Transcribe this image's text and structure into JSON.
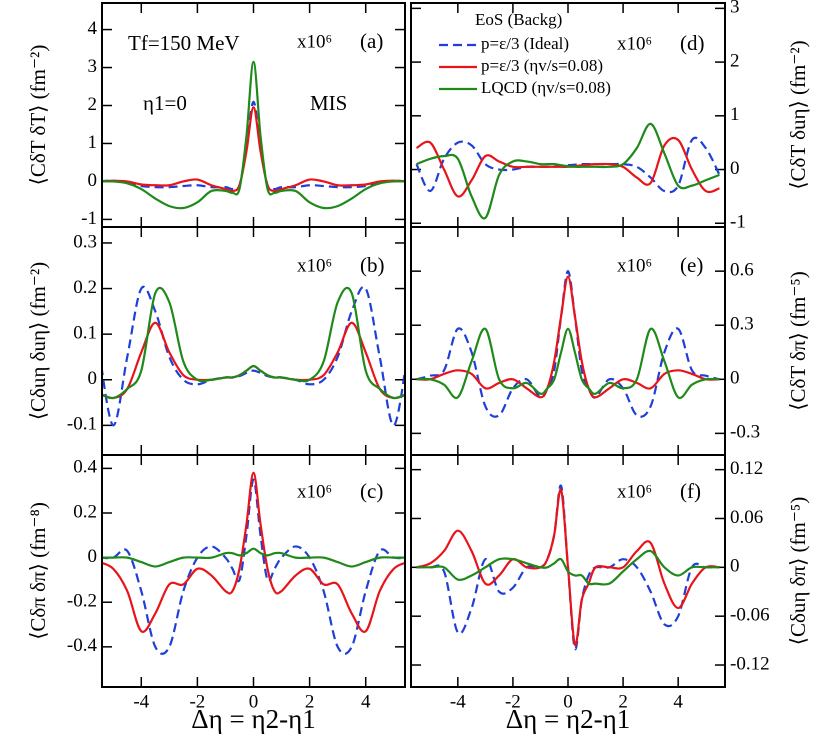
{
  "chart_data": [
    {
      "type": "line",
      "panel": "(a)",
      "multiplier": "x10⁶",
      "ylabel": "⟨CδT δT⟩ (fm⁻²)",
      "annotations": [
        "Tf=150 MeV",
        "η1=0",
        "MIS"
      ],
      "xlim": [
        -5.4,
        5.4
      ],
      "xticks": [
        -4,
        -2,
        0,
        2,
        4
      ],
      "ylim": [
        -1.2,
        4.7
      ],
      "yticks": [
        -1,
        0,
        1,
        2,
        3,
        4
      ],
      "x": [
        -5.5,
        -5,
        -4.5,
        -4,
        -3.5,
        -3,
        -2.5,
        -2,
        -1.5,
        -1,
        -0.75,
        -0.5,
        -0.25,
        0,
        0.25,
        0.5,
        0.75,
        1,
        1.5,
        2,
        2.5,
        3,
        3.5,
        4,
        4.5,
        5,
        5.5
      ],
      "series": [
        {
          "color": "#1f3fd8",
          "dash": true,
          "values": [
            0,
            0.02,
            -0.05,
            -0.12,
            -0.15,
            -0.15,
            -0.12,
            -0.1,
            -0.15,
            -0.15,
            -0.2,
            -0.1,
            0.9,
            2.1,
            0.9,
            -0.1,
            -0.2,
            -0.15,
            -0.15,
            -0.1,
            -0.12,
            -0.15,
            -0.15,
            -0.12,
            -0.05,
            0.02,
            0
          ]
        },
        {
          "color": "#e8141a",
          "dash": false,
          "values": [
            0,
            0.02,
            0,
            -0.08,
            -0.1,
            -0.1,
            0,
            0.05,
            -0.1,
            -0.2,
            -0.25,
            -0.1,
            0.8,
            1.95,
            0.8,
            -0.1,
            -0.25,
            -0.2,
            -0.1,
            0.05,
            0,
            -0.1,
            -0.1,
            -0.08,
            0,
            0.02,
            0
          ]
        },
        {
          "color": "#1f8a1a",
          "dash": false,
          "values": [
            0,
            0,
            -0.05,
            -0.2,
            -0.45,
            -0.65,
            -0.7,
            -0.55,
            -0.25,
            -0.25,
            -0.3,
            -0.2,
            1.2,
            3.15,
            1.2,
            -0.2,
            -0.3,
            -0.25,
            -0.25,
            -0.55,
            -0.7,
            -0.65,
            -0.45,
            -0.2,
            -0.05,
            0,
            0
          ]
        }
      ]
    },
    {
      "type": "line",
      "panel": "(b)",
      "multiplier": "x10⁶",
      "ylabel": "⟨Cδuη δuη⟩ (fm⁻²)",
      "xlim": [
        -5.4,
        5.4
      ],
      "xticks": [
        -4,
        -2,
        0,
        2,
        4
      ],
      "ylim": [
        -0.165,
        0.335
      ],
      "yticks": [
        -0.1,
        0,
        0.1,
        0.2,
        0.3
      ],
      "x": [
        -5.5,
        -5,
        -4.5,
        -4,
        -3.5,
        -3,
        -2.5,
        -2,
        -1.5,
        -1,
        -0.75,
        -0.5,
        -0.25,
        0,
        0.25,
        0.5,
        0.75,
        1,
        1.5,
        2,
        2.5,
        3,
        3.5,
        4,
        4.5,
        5,
        5.5
      ],
      "series": [
        {
          "color": "#1f3fd8",
          "dash": true,
          "values": [
            0.06,
            -0.1,
            0.05,
            0.2,
            0.15,
            0.05,
            0,
            -0.01,
            0,
            0.005,
            0.005,
            0.008,
            0.015,
            0.02,
            0.015,
            0.008,
            0.005,
            0.005,
            0,
            -0.01,
            0,
            0.05,
            0.15,
            0.2,
            0.05,
            -0.1,
            0.06
          ]
        },
        {
          "color": "#e8141a",
          "dash": false,
          "values": [
            -0.03,
            -0.04,
            -0.02,
            0.06,
            0.125,
            0.06,
            0.01,
            0,
            0,
            0.005,
            0.005,
            0.01,
            0.02,
            0.03,
            0.02,
            0.01,
            0.005,
            0.005,
            0,
            0,
            0.01,
            0.06,
            0.125,
            0.06,
            -0.02,
            -0.04,
            -0.03
          ]
        },
        {
          "color": "#1f8a1a",
          "dash": false,
          "values": [
            -0.03,
            -0.04,
            -0.02,
            0.02,
            0.19,
            0.17,
            0.04,
            0,
            0,
            0.005,
            0.005,
            0.01,
            0.02,
            0.03,
            0.02,
            0.01,
            0.005,
            0.005,
            0,
            0,
            0.04,
            0.17,
            0.19,
            0.02,
            -0.02,
            -0.04,
            -0.03
          ]
        }
      ]
    },
    {
      "type": "line",
      "panel": "(c)",
      "multiplier": "x10⁶",
      "ylabel": "⟨Cδπ δπ⟩ (fm⁻⁸)",
      "xlabel": "Δη = η2-η1",
      "xlim": [
        -5.4,
        5.4
      ],
      "xticks": [
        -4,
        -2,
        0,
        2,
        4
      ],
      "ylim": [
        -0.58,
        0.46
      ],
      "yticks": [
        -0.4,
        -0.2,
        0,
        0.2,
        0.4
      ],
      "x": [
        -5.5,
        -5,
        -4.5,
        -4,
        -3.5,
        -3,
        -2.5,
        -2,
        -1.5,
        -1,
        -0.75,
        -0.5,
        -0.25,
        0,
        0.25,
        0.5,
        0.75,
        1,
        1.5,
        2,
        2.5,
        3,
        3.5,
        4,
        4.5,
        5,
        5.5
      ],
      "series": [
        {
          "color": "#1f3fd8",
          "dash": true,
          "values": [
            0,
            0,
            0.03,
            -0.15,
            -0.4,
            -0.4,
            -0.15,
            0,
            0.05,
            0,
            -0.05,
            -0.1,
            0.1,
            0.35,
            0.1,
            -0.1,
            -0.05,
            0,
            0.05,
            0,
            -0.15,
            -0.4,
            -0.4,
            -0.15,
            0.03,
            0,
            0
          ]
        },
        {
          "color": "#e8141a",
          "dash": false,
          "values": [
            -0.02,
            -0.05,
            -0.15,
            -0.33,
            -0.25,
            -0.12,
            -0.12,
            -0.05,
            -0.08,
            -0.15,
            -0.15,
            -0.05,
            0.15,
            0.38,
            0.15,
            -0.05,
            -0.15,
            -0.15,
            -0.08,
            -0.05,
            -0.12,
            -0.12,
            -0.25,
            -0.33,
            -0.15,
            -0.05,
            -0.02
          ]
        },
        {
          "color": "#1f8a1a",
          "dash": false,
          "values": [
            0,
            0,
            0,
            -0.02,
            -0.04,
            -0.02,
            0,
            0,
            0,
            0.02,
            0.02,
            0.01,
            0.02,
            0.04,
            0.02,
            0.01,
            0.02,
            0.02,
            0,
            0,
            0,
            -0.02,
            -0.04,
            -0.02,
            0,
            0,
            0
          ]
        }
      ]
    },
    {
      "type": "line",
      "panel": "(d)",
      "multiplier": "x10⁶",
      "ylabel": "⟨CδT δuη⟩ (fm⁻²)",
      "legend_title": "EoS  (Backg)",
      "xlim": [
        -5.7,
        5.7
      ],
      "xticks": [
        -4,
        -2,
        0,
        2,
        4
      ],
      "ylim": [
        -1.07,
        3.1
      ],
      "yticks": [
        -1,
        0,
        1,
        2,
        3
      ],
      "x": [
        -5.5,
        -5,
        -4.5,
        -4,
        -3.5,
        -3,
        -2.5,
        -2,
        -1.5,
        -1,
        -0.75,
        -0.5,
        -0.25,
        0,
        0.25,
        0.5,
        0.75,
        1,
        1.5,
        2,
        2.5,
        3,
        3.5,
        4,
        4.5,
        5,
        5.5
      ],
      "series": [
        {
          "name": "p=ε/3 (Ideal)",
          "color": "#1f3fd8",
          "dash": true,
          "values": [
            0.1,
            -0.4,
            0.2,
            0.5,
            0.45,
            0.1,
            0,
            0,
            0.05,
            0.05,
            0.05,
            0.05,
            0.07,
            0.08,
            0.09,
            0.1,
            0.1,
            0.1,
            0.1,
            0.1,
            0.05,
            -0.15,
            -0.4,
            -0.3,
            0.55,
            0.4,
            -0.1
          ]
        },
        {
          "name": "p=ε/3 (ηv/s=0.08)",
          "color": "#e8141a",
          "dash": false,
          "values": [
            0.4,
            0.5,
            0,
            -0.5,
            -0.2,
            0.25,
            0.15,
            0.05,
            0.05,
            0.05,
            0.05,
            0.05,
            0.05,
            0.05,
            0.06,
            0.08,
            0.09,
            0.1,
            0.1,
            0.05,
            -0.15,
            -0.25,
            0.45,
            0.55,
            0,
            -0.4,
            -0.35
          ]
        },
        {
          "name": "LQCD (ηv/s=0.08)",
          "color": "#1f8a1a",
          "dash": false,
          "values": [
            0.1,
            0.2,
            0.25,
            0.2,
            -0.5,
            -0.9,
            -0.1,
            0.15,
            0.15,
            0.1,
            0.1,
            0.1,
            0.08,
            0.06,
            0.05,
            0.05,
            0.05,
            0.05,
            0.05,
            0.1,
            0.4,
            0.85,
            0.3,
            -0.3,
            -0.3,
            -0.2,
            -0.1
          ]
        }
      ]
    },
    {
      "type": "line",
      "panel": "(e)",
      "multiplier": "x10⁶",
      "ylabel": "⟨CδT δπ⟩ (fm⁻⁵)",
      "xlim": [
        -5.7,
        5.7
      ],
      "xticks": [
        -4,
        -2,
        0,
        2,
        4
      ],
      "ylim": [
        -0.42,
        0.845
      ],
      "yticks": [
        -0.3,
        0,
        0.3,
        0.6
      ],
      "x": [
        -5.5,
        -5,
        -4.5,
        -4,
        -3.5,
        -3,
        -2.5,
        -2,
        -1.5,
        -1,
        -0.75,
        -0.5,
        -0.25,
        0,
        0.25,
        0.5,
        0.75,
        1,
        1.5,
        2,
        2.5,
        3,
        3.5,
        4,
        4.5,
        5,
        5.5
      ],
      "series": [
        {
          "color": "#1f3fd8",
          "dash": true,
          "values": [
            0,
            0.02,
            0.05,
            0.28,
            0.15,
            -0.15,
            -0.2,
            -0.05,
            0,
            -0.1,
            -0.05,
            0.05,
            0.35,
            0.6,
            0.35,
            0.05,
            -0.05,
            -0.1,
            0,
            -0.05,
            -0.2,
            -0.15,
            0.15,
            0.28,
            0.05,
            0.02,
            0
          ]
        },
        {
          "color": "#e8141a",
          "dash": false,
          "values": [
            0,
            0,
            0.03,
            0.05,
            0.03,
            -0.05,
            -0.02,
            0,
            -0.05,
            -0.1,
            -0.05,
            0.1,
            0.35,
            0.57,
            0.35,
            0.1,
            -0.05,
            -0.1,
            -0.05,
            0,
            -0.02,
            -0.05,
            0.03,
            0.05,
            0.03,
            0,
            0
          ]
        },
        {
          "color": "#1f8a1a",
          "dash": false,
          "values": [
            0,
            0,
            -0.03,
            -0.1,
            0.1,
            0.28,
            0,
            -0.05,
            -0.02,
            -0.08,
            -0.05,
            0,
            0.15,
            0.28,
            0.15,
            0,
            -0.05,
            -0.08,
            -0.02,
            -0.05,
            0,
            0.28,
            0.1,
            -0.1,
            -0.03,
            0,
            0
          ]
        }
      ]
    },
    {
      "type": "line",
      "panel": "(f)",
      "multiplier": "x10⁶",
      "ylabel": "⟨Cδuη δπ⟩ (fm⁻⁵)",
      "xlabel": "Δη = η2-η1",
      "xlim": [
        -5.7,
        5.7
      ],
      "xticks": [
        -4,
        -2,
        0,
        2,
        4
      ],
      "ylim": [
        -0.147,
        0.138
      ],
      "yticks": [
        -0.12,
        -0.06,
        0,
        0.06,
        0.12
      ],
      "x": [
        -5.5,
        -5,
        -4.5,
        -4,
        -3.5,
        -3,
        -2.5,
        -2,
        -1.5,
        -1,
        -0.75,
        -0.5,
        -0.25,
        0,
        0.25,
        0.5,
        0.75,
        1,
        1.5,
        2,
        2.5,
        3,
        3.5,
        4,
        4.5,
        5,
        5.5
      ],
      "series": [
        {
          "color": "#1f3fd8",
          "dash": true,
          "values": [
            0,
            0,
            -0.005,
            -0.08,
            -0.05,
            0.01,
            -0.03,
            -0.025,
            0,
            0,
            0.01,
            0.04,
            0.1,
            0,
            -0.1,
            -0.04,
            -0.01,
            0,
            0,
            0.01,
            0,
            -0.03,
            -0.07,
            -0.06,
            0,
            0,
            0
          ]
        },
        {
          "color": "#e8141a",
          "dash": false,
          "values": [
            0,
            0.005,
            0.02,
            0.045,
            0.02,
            -0.02,
            -0.01,
            0.01,
            0,
            0,
            0.01,
            0.04,
            0.095,
            0,
            -0.095,
            -0.04,
            -0.02,
            0,
            0,
            0,
            0.02,
            0.03,
            -0.02,
            -0.05,
            -0.02,
            0,
            0
          ]
        },
        {
          "color": "#1f8a1a",
          "dash": false,
          "values": [
            0,
            0,
            0,
            -0.015,
            -0.01,
            0,
            0.01,
            0.01,
            0.005,
            0,
            0,
            0.005,
            0.01,
            -0.005,
            -0.01,
            -0.01,
            -0.02,
            -0.02,
            -0.02,
            -0.005,
            0.01,
            0.02,
            0,
            -0.01,
            0,
            0,
            0
          ]
        }
      ]
    }
  ]
}
